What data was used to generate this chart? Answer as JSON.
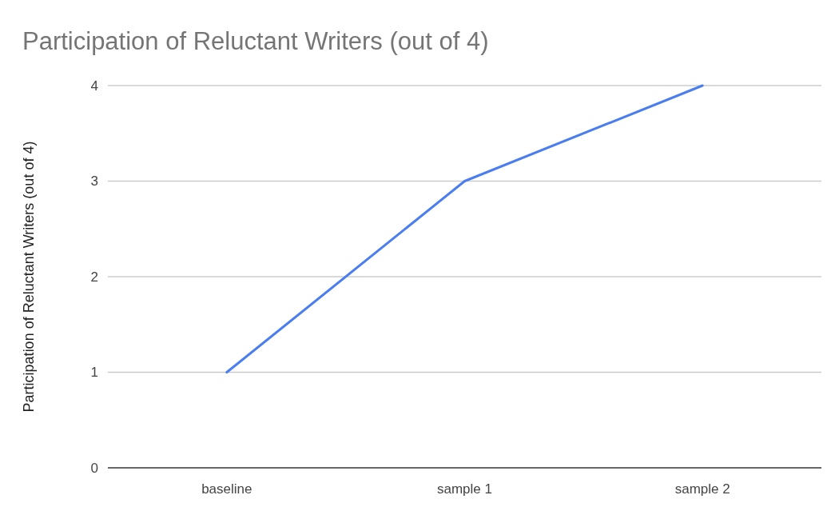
{
  "chart_data": {
    "type": "line",
    "title": "Participation of Reluctant Writers (out of 4)",
    "ylabel": "Participation of Reluctant Writers (out of 4)",
    "categories": [
      "baseline",
      "sample 1",
      "sample 2"
    ],
    "series": [
      {
        "color": "#4a7ef0",
        "values": [
          1,
          3,
          4
        ]
      }
    ],
    "ylim": [
      0,
      4
    ],
    "yticks": [
      0,
      1,
      2,
      3,
      4
    ],
    "grid": "y",
    "marker": "none",
    "line_style": "solid"
  }
}
